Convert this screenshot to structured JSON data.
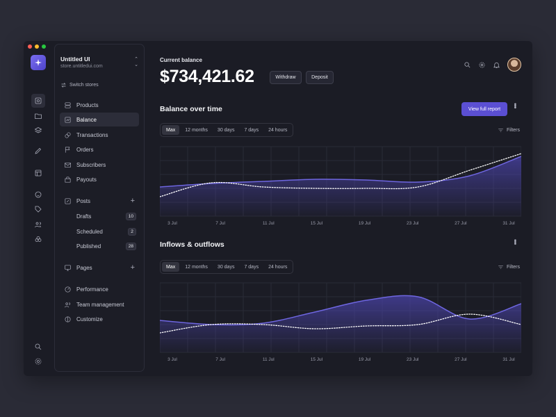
{
  "store": {
    "name": "Untitled UI",
    "url": "store.untitledui.com",
    "switch_label": "Switch stores"
  },
  "nav": [
    {
      "label": "Products",
      "icon": "products-icon"
    },
    {
      "label": "Balance",
      "icon": "balance-icon"
    },
    {
      "label": "Transactions",
      "icon": "transactions-icon"
    },
    {
      "label": "Orders",
      "icon": "orders-icon"
    },
    {
      "label": "Subscribers",
      "icon": "subscribers-icon"
    },
    {
      "label": "Payouts",
      "icon": "payouts-icon"
    }
  ],
  "posts": {
    "label": "Posts",
    "sub": [
      {
        "label": "Drafts",
        "count": "10"
      },
      {
        "label": "Scheduled",
        "count": "2"
      },
      {
        "label": "Published",
        "count": "28"
      }
    ]
  },
  "pages_label": "Pages",
  "nav_bottom": [
    {
      "label": "Performance"
    },
    {
      "label": "Team management"
    },
    {
      "label": "Customize"
    }
  ],
  "balance": {
    "label": "Current balance",
    "amount": "$734,421.62",
    "withdraw": "Withdraw",
    "deposit": "Deposit"
  },
  "report_button": "View full report",
  "filters_label": "Filters",
  "tabs": [
    "Max",
    "12 months",
    "30 days",
    "7 days",
    "24 hours"
  ],
  "colors": {
    "accent": "#5b4fd3",
    "series_fill": "#4a43a8",
    "series_line": "#6e66e0",
    "dotted": "#ffffff"
  },
  "chart_data": [
    {
      "type": "area",
      "title": "Balance over time",
      "x": [
        "3 Jul",
        "7 Jul",
        "11 Jul",
        "15 Jul",
        "19 Jul",
        "23 Jul",
        "27 Jul",
        "31 Jul"
      ],
      "series": [
        {
          "values": [
            42,
            47,
            50,
            53,
            52,
            49,
            58,
            86
          ]
        },
        {
          "values": [
            28,
            48,
            42,
            40,
            40,
            42,
            66,
            90
          ]
        }
      ],
      "grid": true
    },
    {
      "type": "area",
      "title": "Inflows & outflows",
      "x": [
        "3 Jul",
        "7 Jul",
        "11 Jul",
        "15 Jul",
        "19 Jul",
        "23 Jul",
        "27 Jul",
        "31 Jul"
      ],
      "series": [
        {
          "values": [
            46,
            40,
            42,
            58,
            75,
            80,
            48,
            70
          ]
        },
        {
          "values": [
            28,
            40,
            40,
            34,
            38,
            40,
            55,
            40
          ]
        }
      ],
      "grid": true
    }
  ]
}
